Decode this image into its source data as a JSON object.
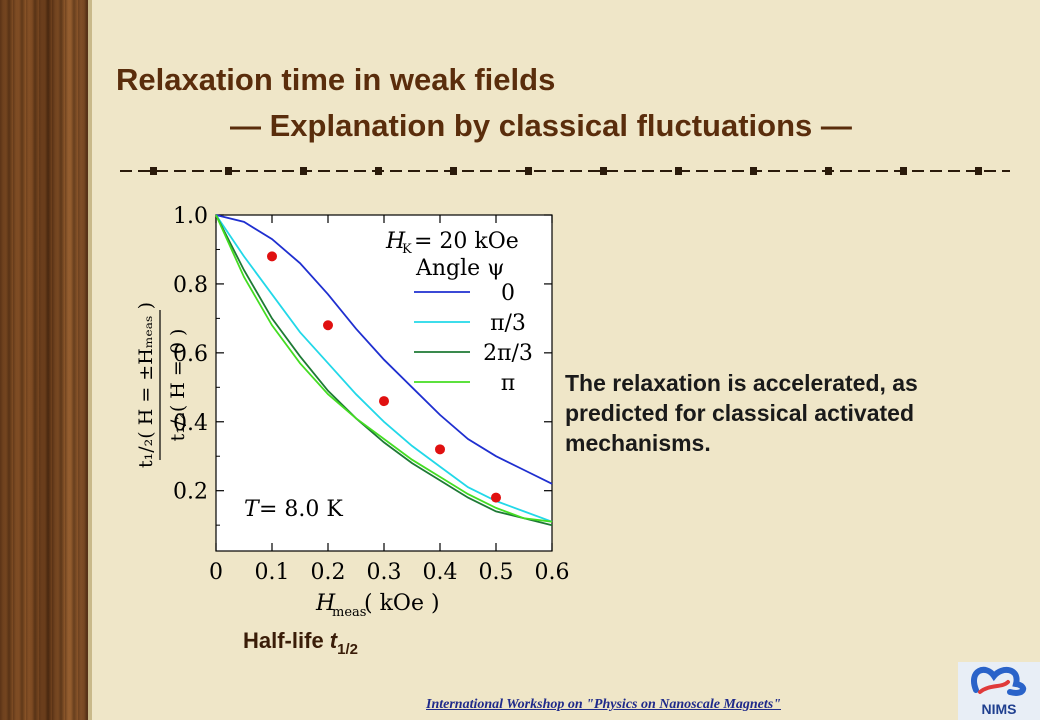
{
  "slide": {
    "title_line1": "Relaxation time in weak fields",
    "title_line2": "— Explanation by classical fluctuations —",
    "note": "The relaxation is accelerated, as predicted for classical activated mechanisms.",
    "caption_main": "Half-life ",
    "caption_var": "t",
    "caption_sub": "1/2",
    "footer": "International Workshop on \"Physics on Nanoscale Magnets\"",
    "logo_text": "NIMS",
    "colors": {
      "title": "#5a2d0c",
      "footer": "#1f2a8a",
      "background": "#efe6c8"
    }
  },
  "chart_data": {
    "type": "line",
    "xlabel_main": "H",
    "xlabel_sub": "meas",
    "xlabel_unit": " ( kOe )",
    "ylabel_num": "t₁/₂( H = ±Hₘₑₐₛ )",
    "ylabel_den": "t₁/₂( H = 0 )",
    "xlim": [
      0,
      0.6
    ],
    "ylim": [
      0.0,
      1.0
    ],
    "xticks": [
      "0",
      "0.1",
      "0.2",
      "0.3",
      "0.4",
      "0.5",
      "0.6"
    ],
    "yticks": [
      "0.2",
      "0.4",
      "0.6",
      "0.8",
      "1.0"
    ],
    "annotation_field": "H_K = 20 kOe",
    "annotation_field_parts": {
      "H": "H",
      "sub": "K",
      "rest": " = 20 kOe"
    },
    "legend_title": "Angle ψ",
    "annotation_temp": "T = 8.0 K",
    "annotation_temp_parts": {
      "T": "T",
      "rest": " = 8.0 K"
    },
    "legend_position": "top-right",
    "series": [
      {
        "name": "0",
        "color": "#1f2fd0",
        "x": [
          0,
          0.05,
          0.1,
          0.15,
          0.2,
          0.25,
          0.3,
          0.35,
          0.4,
          0.45,
          0.5,
          0.55,
          0.6
        ],
        "y": [
          1.0,
          0.98,
          0.93,
          0.86,
          0.77,
          0.67,
          0.58,
          0.5,
          0.42,
          0.35,
          0.3,
          0.26,
          0.22
        ]
      },
      {
        "name": "π/3",
        "color": "#22d8e8",
        "x": [
          0,
          0.05,
          0.1,
          0.15,
          0.2,
          0.25,
          0.3,
          0.35,
          0.4,
          0.45,
          0.5,
          0.55,
          0.6
        ],
        "y": [
          1.0,
          0.88,
          0.77,
          0.66,
          0.57,
          0.48,
          0.4,
          0.33,
          0.27,
          0.21,
          0.17,
          0.14,
          0.11
        ]
      },
      {
        "name": "2π/3",
        "color": "#1e7a35",
        "x": [
          0,
          0.05,
          0.1,
          0.15,
          0.2,
          0.25,
          0.3,
          0.35,
          0.4,
          0.45,
          0.5,
          0.55,
          0.6
        ],
        "y": [
          1.0,
          0.84,
          0.7,
          0.59,
          0.49,
          0.41,
          0.34,
          0.28,
          0.23,
          0.18,
          0.14,
          0.12,
          0.1
        ]
      },
      {
        "name": "π",
        "color": "#44dd22",
        "x": [
          0,
          0.05,
          0.1,
          0.15,
          0.2,
          0.25,
          0.3,
          0.35,
          0.4,
          0.45,
          0.5,
          0.55,
          0.6
        ],
        "y": [
          1.0,
          0.82,
          0.68,
          0.57,
          0.48,
          0.41,
          0.35,
          0.29,
          0.24,
          0.19,
          0.15,
          0.12,
          0.11
        ]
      }
    ],
    "points": {
      "color": "#e01010",
      "x": [
        0.1,
        0.2,
        0.3,
        0.4,
        0.5
      ],
      "y": [
        0.88,
        0.68,
        0.46,
        0.32,
        0.18
      ]
    }
  }
}
